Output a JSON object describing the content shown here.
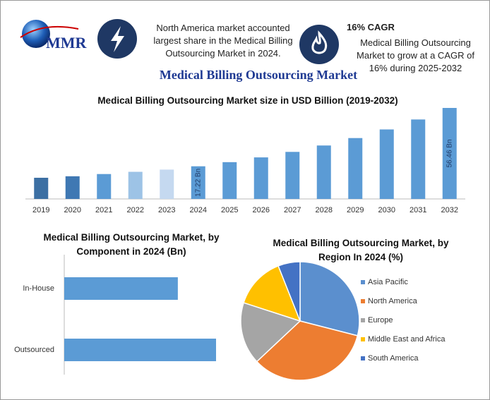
{
  "header": {
    "logo": "MMR",
    "share_text": "North America market accounted largest share in the Medical Billing Outsourcing Market in 2024.",
    "cagr_title": "16% CAGR",
    "cagr_text": "Medical Billing Outsourcing Market to grow at a CAGR of 16% during 2025-2032",
    "title": "Medical Billing Outsourcing Market"
  },
  "chart_data": [
    {
      "type": "bar",
      "title": "Medical Billing Outsourcing Market size in USD Billion (2019-2032)",
      "categories": [
        "2019",
        "2020",
        "2021",
        "2022",
        "2023",
        "2024",
        "2025",
        "2026",
        "2027",
        "2028",
        "2029",
        "2030",
        "2031",
        "2032"
      ],
      "values": [
        9.5,
        10.5,
        12.0,
        13.5,
        15.0,
        17.22,
        20.0,
        23.2,
        26.9,
        31.2,
        36.2,
        42.0,
        48.7,
        56.46
      ],
      "value_labels": [
        null,
        null,
        null,
        null,
        null,
        "17.22 Bn",
        null,
        null,
        null,
        null,
        null,
        null,
        null,
        "56.46 Bn"
      ],
      "colors": [
        "#3c6fa3",
        "#3f78b3",
        "#5b9bd5",
        "#9dc3e6",
        "#c5d9f0",
        "#5b9bd5",
        "#5b9bd5",
        "#5b9bd5",
        "#5b9bd5",
        "#5b9bd5",
        "#5b9bd5",
        "#5b9bd5",
        "#5b9bd5",
        "#5b9bd5"
      ]
    },
    {
      "type": "bar",
      "horizontal": true,
      "title": "Medical Billing Outsourcing Market, by Component in 2024 (Bn)",
      "categories": [
        "In-House",
        "Outsourced"
      ],
      "values": [
        7.37,
        9.85
      ],
      "color": "#5b9bd5"
    },
    {
      "type": "pie",
      "title": "Medical Billing Outsourcing Market, by Region In 2024 (%)",
      "categories": [
        "Asia Pacific",
        "North America",
        "Europe",
        "Middle East and Africa",
        "South America"
      ],
      "values": [
        29,
        34,
        17,
        14,
        6
      ],
      "colors": [
        "#5b8fce",
        "#ed7d31",
        "#a5a5a5",
        "#ffc000",
        "#4472c4"
      ]
    }
  ]
}
